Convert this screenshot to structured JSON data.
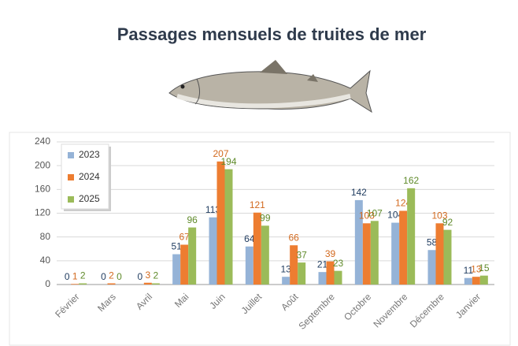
{
  "chart_data": {
    "type": "bar",
    "title": "Passages mensuels de truites de mer",
    "categories": [
      "Février",
      "Mars",
      "Avril",
      "Mai",
      "Juin",
      "Juillet",
      "Août",
      "Septembre",
      "Octobre",
      "Novembre",
      "Décembre",
      "Janvier"
    ],
    "series": [
      {
        "name": "2023",
        "color": "#95b3d7",
        "label_color": "#1f3b5f",
        "values": [
          0,
          0,
          0,
          51,
          113,
          64,
          13,
          21,
          142,
          104,
          58,
          11
        ]
      },
      {
        "name": "2024",
        "color": "#ed7d31",
        "label_color": "#d2691e",
        "values": [
          1,
          2,
          3,
          67,
          207,
          121,
          66,
          39,
          103,
          124,
          103,
          13
        ]
      },
      {
        "name": "2025",
        "color": "#9bbb59",
        "label_color": "#5f8a2a",
        "values": [
          2,
          0,
          2,
          96,
          194,
          99,
          37,
          23,
          107,
          162,
          92,
          15
        ]
      }
    ],
    "ylim": [
      0,
      240
    ],
    "yticks": [
      0,
      40,
      80,
      120,
      160,
      200,
      240
    ],
    "grid": true,
    "legend": "top-left"
  }
}
